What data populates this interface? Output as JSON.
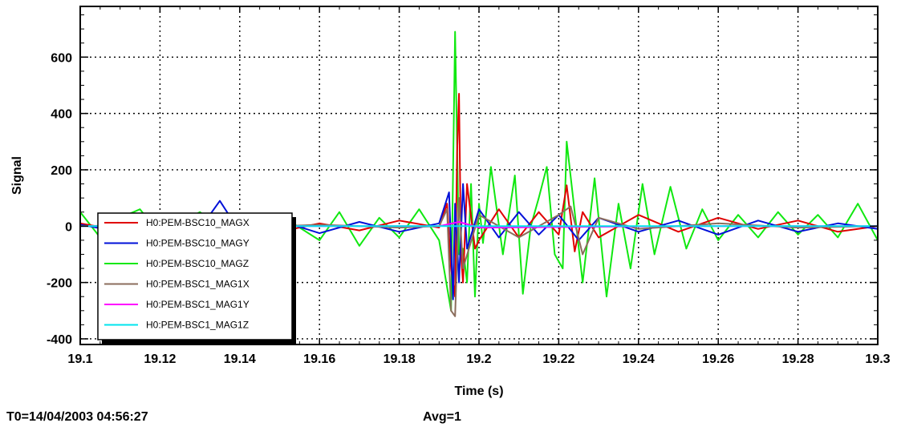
{
  "chart_data": {
    "type": "line",
    "title": "",
    "xlabel": "Time (s)",
    "ylabel": "Signal",
    "xlim": [
      19.1,
      19.3
    ],
    "ylim": [
      -420,
      780
    ],
    "xticks": [
      19.1,
      19.12,
      19.14,
      19.16,
      19.18,
      19.2,
      19.22,
      19.24,
      19.26,
      19.28,
      19.3
    ],
    "xtick_labels": [
      "19.1",
      "19.12",
      "19.14",
      "19.16",
      "19.18",
      "19.2",
      "19.22",
      "19.24",
      "19.26",
      "19.28",
      "19.3"
    ],
    "yticks": [
      -400,
      -200,
      0,
      200,
      400,
      600
    ],
    "ytick_labels": [
      "-400",
      "-200",
      "0",
      "200",
      "400",
      "600"
    ],
    "grid": true,
    "legend_position": "lower-left",
    "series": [
      {
        "name": "H0:PEM-BSC10_MAGX",
        "color": "#e00000",
        "x": [
          19.1,
          19.11,
          19.12,
          19.13,
          19.14,
          19.15,
          19.16,
          19.17,
          19.18,
          19.19,
          19.192,
          19.193,
          19.194,
          19.1945,
          19.195,
          19.1955,
          19.196,
          19.197,
          19.199,
          19.2,
          19.205,
          19.21,
          19.215,
          19.22,
          19.222,
          19.224,
          19.226,
          19.23,
          19.24,
          19.25,
          19.26,
          19.27,
          19.28,
          19.29,
          19.3
        ],
        "y": [
          10,
          -15,
          20,
          -10,
          15,
          -20,
          10,
          -15,
          20,
          -5,
          80,
          -150,
          -250,
          260,
          470,
          -100,
          -200,
          150,
          -80,
          -50,
          60,
          -40,
          50,
          -30,
          145,
          -90,
          50,
          -40,
          40,
          -20,
          30,
          -10,
          20,
          -20,
          0
        ]
      },
      {
        "name": "H0:PEM-BSC10_MAGY",
        "color": "#0010d8",
        "x": [
          19.1,
          19.11,
          19.12,
          19.13,
          19.135,
          19.14,
          19.15,
          19.16,
          19.17,
          19.18,
          19.19,
          19.1925,
          19.1935,
          19.194,
          19.195,
          19.196,
          19.197,
          19.2,
          19.205,
          19.21,
          19.215,
          19.22,
          19.225,
          19.23,
          19.24,
          19.25,
          19.26,
          19.27,
          19.28,
          19.29,
          19.3
        ],
        "y": [
          5,
          -20,
          15,
          -10,
          90,
          -20,
          20,
          -25,
          15,
          -20,
          10,
          120,
          -260,
          80,
          -200,
          150,
          -80,
          60,
          -40,
          50,
          -30,
          40,
          -50,
          30,
          -20,
          20,
          -30,
          20,
          -20,
          10,
          -10
        ]
      },
      {
        "name": "H0:PEM-BSC10_MAGZ",
        "color": "#10e810",
        "x": [
          19.1,
          19.105,
          19.11,
          19.115,
          19.12,
          19.13,
          19.14,
          19.15,
          19.16,
          19.165,
          19.17,
          19.175,
          19.18,
          19.185,
          19.19,
          19.193,
          19.194,
          19.195,
          19.196,
          19.197,
          19.198,
          19.199,
          19.2,
          19.201,
          19.203,
          19.206,
          19.209,
          19.211,
          19.213,
          19.215,
          19.217,
          19.219,
          19.221,
          19.222,
          19.224,
          19.226,
          19.229,
          19.232,
          19.235,
          19.238,
          19.241,
          19.244,
          19.248,
          19.252,
          19.256,
          19.26,
          19.265,
          19.27,
          19.275,
          19.28,
          19.285,
          19.29,
          19.295,
          19.3
        ],
        "y": [
          50,
          -40,
          30,
          60,
          -30,
          50,
          -60,
          40,
          -50,
          50,
          -70,
          30,
          -40,
          60,
          -50,
          -300,
          690,
          -100,
          -80,
          -200,
          150,
          -250,
          80,
          -60,
          210,
          -100,
          180,
          -240,
          0,
          100,
          210,
          -100,
          -150,
          300,
          50,
          -200,
          170,
          -250,
          80,
          -150,
          150,
          -100,
          140,
          -80,
          60,
          -50,
          40,
          -40,
          50,
          -30,
          40,
          -40,
          80,
          -50
        ]
      },
      {
        "name": "H0:PEM-BSC1_MAG1X",
        "color": "#8b6d5c",
        "x": [
          19.1,
          19.12,
          19.14,
          19.16,
          19.18,
          19.19,
          19.192,
          19.193,
          19.194,
          19.195,
          19.196,
          19.2,
          19.21,
          19.22,
          19.223,
          19.226,
          19.23,
          19.24,
          19.26,
          19.28,
          19.3
        ],
        "y": [
          0,
          5,
          -5,
          5,
          -5,
          0,
          60,
          -300,
          -320,
          100,
          -150,
          40,
          -40,
          40,
          70,
          -100,
          30,
          -10,
          10,
          -5,
          0
        ]
      },
      {
        "name": "H0:PEM-BSC1_MAG1Y",
        "color": "#ff00ff",
        "x": [
          19.1,
          19.15,
          19.19,
          19.195,
          19.2,
          19.25,
          19.3
        ],
        "y": [
          0,
          0,
          0,
          15,
          -5,
          0,
          0
        ]
      },
      {
        "name": "H0:PEM-BSC1_MAG1Z",
        "color": "#00e5ee",
        "x": [
          19.1,
          19.15,
          19.2,
          19.25,
          19.3
        ],
        "y": [
          0,
          0,
          0,
          0,
          0
        ]
      }
    ]
  },
  "footer": {
    "t0": "T0=14/04/2003 04:56:27",
    "avg": "Avg=1"
  }
}
